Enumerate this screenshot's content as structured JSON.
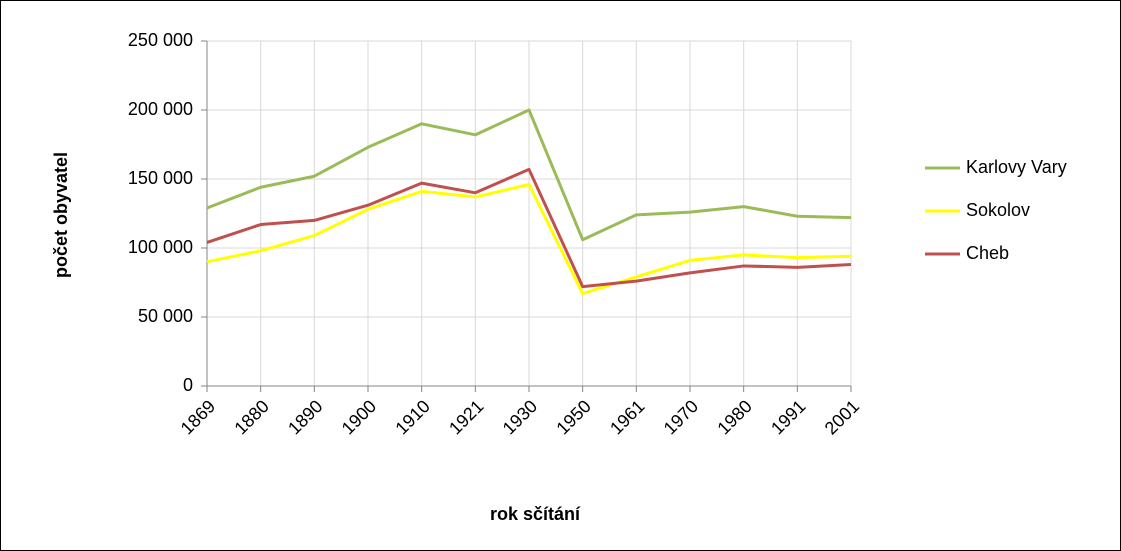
{
  "chart_data": {
    "type": "line",
    "y_label": "počet obyvatel",
    "x_label": "rok sčítání",
    "categories": [
      "1869",
      "1880",
      "1890",
      "1900",
      "1910",
      "1921",
      "1930",
      "1950",
      "1961",
      "1970",
      "1980",
      "1991",
      "2001"
    ],
    "series": [
      {
        "name": "Karlovy Vary",
        "color": "#9bbb59",
        "values": [
          129000,
          144000,
          152000,
          173000,
          190000,
          182000,
          200000,
          106000,
          124000,
          126000,
          130000,
          123000,
          122000
        ]
      },
      {
        "name": "Sokolov",
        "color": "#ffff00",
        "values": [
          90000,
          98000,
          109000,
          128000,
          141000,
          137000,
          146000,
          67000,
          79000,
          91000,
          95000,
          93000,
          94000
        ]
      },
      {
        "name": "Cheb",
        "color": "#c0504d",
        "values": [
          104000,
          117000,
          120000,
          131000,
          147000,
          140000,
          157000,
          72000,
          76000,
          82000,
          87000,
          86000,
          88000
        ]
      }
    ],
    "ylim": [
      0,
      250000
    ],
    "yticks": [
      0,
      {
        "value": 50000,
        "label": "50 000"
      },
      {
        "value": 100000,
        "label": "100 000"
      },
      {
        "value": 150000,
        "label": "150 000"
      },
      {
        "value": 200000,
        "label": "200 000"
      },
      {
        "value": 250000,
        "label": "250 000"
      }
    ],
    "grid": true,
    "legend": "right"
  }
}
